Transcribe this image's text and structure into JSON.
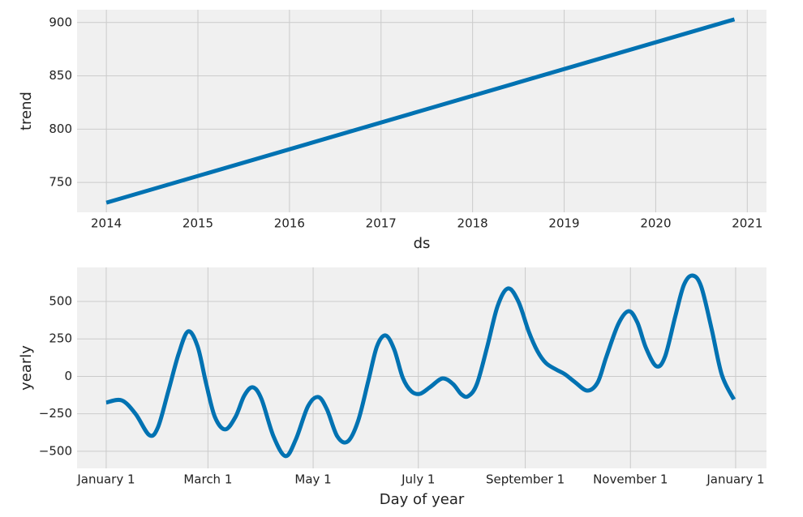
{
  "chart_data": [
    {
      "type": "line",
      "xlabel": "ds",
      "ylabel": "trend",
      "x": [
        2014,
        2020.86
      ],
      "series": [
        {
          "name": "trend",
          "color": "#0072B2",
          "values": [
            731,
            903
          ]
        }
      ],
      "xlim": [
        2013.68,
        2021.21
      ],
      "ylim": [
        722,
        912
      ],
      "xticks": [
        2014,
        2015,
        2016,
        2017,
        2018,
        2019,
        2020,
        2021
      ],
      "yticks": [
        750,
        800,
        850,
        900
      ],
      "grid": true
    },
    {
      "type": "line",
      "xlabel": "Day of year",
      "ylabel": "yearly",
      "x": [
        0,
        9,
        17,
        25,
        30,
        36,
        42,
        47.5,
        53,
        58,
        63,
        69,
        75,
        80,
        85,
        90,
        97,
        104,
        110,
        117,
        123,
        128,
        134,
        140,
        146,
        152,
        157,
        162,
        167,
        172,
        177,
        182,
        188,
        195,
        201,
        206,
        210,
        215,
        221,
        227,
        233,
        239,
        245,
        250,
        255,
        261,
        266,
        272,
        279,
        285,
        290,
        297,
        303,
        308,
        313,
        319,
        324,
        330,
        335,
        340,
        345,
        351,
        357,
        364
      ],
      "series": [
        {
          "name": "yearly",
          "color": "#0072B2",
          "values": [
            -175,
            -160,
            -250,
            -392,
            -340,
            -100,
            150,
            300,
            200,
            -50,
            -270,
            -354,
            -270,
            -130,
            -73,
            -150,
            -400,
            -532,
            -420,
            -200,
            -138,
            -220,
            -400,
            -435,
            -300,
            -30,
            200,
            273,
            180,
            -10,
            -100,
            -116,
            -70,
            -14,
            -50,
            -120,
            -132,
            -50,
            200,
            470,
            587,
            500,
            300,
            170,
            89,
            45,
            14,
            -40,
            -95,
            -40,
            130,
            350,
            435,
            360,
            190,
            68,
            130,
            400,
            610,
            673,
            600,
            320,
            10,
            -154
          ]
        }
      ],
      "xlim": [
        -16.9,
        382.9
      ],
      "ylim": [
        -614,
        727
      ],
      "xticks": [
        {
          "value": 0,
          "label": "January 1"
        },
        {
          "value": 59,
          "label": "March 1"
        },
        {
          "value": 120,
          "label": "May 1"
        },
        {
          "value": 181,
          "label": "July 1"
        },
        {
          "value": 243,
          "label": "September 1"
        },
        {
          "value": 304,
          "label": "November 1"
        },
        {
          "value": 365,
          "label": "January 1"
        }
      ],
      "yticks": [
        {
          "value": -500,
          "label": "−500"
        },
        {
          "value": -250,
          "label": "−250"
        },
        0,
        250,
        500
      ],
      "grid": true
    }
  ]
}
